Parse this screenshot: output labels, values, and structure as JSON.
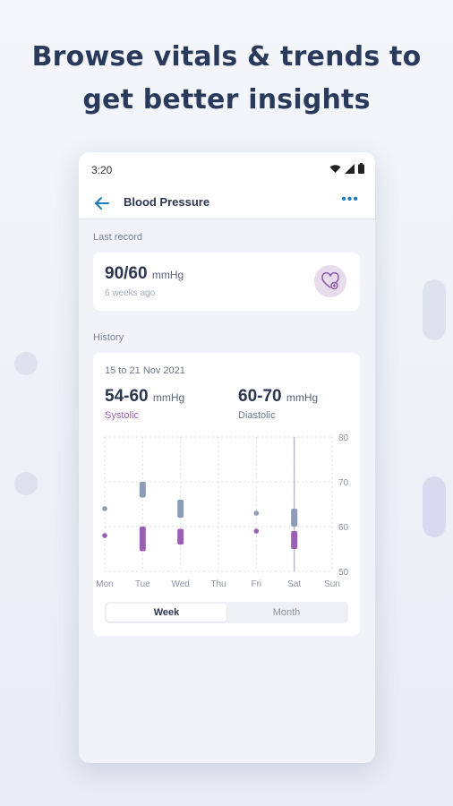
{
  "headline": {
    "line1": "Browse vitals & trends to",
    "line2": "get better insights"
  },
  "status_bar": {
    "time": "3:20",
    "icons": [
      "wifi-icon",
      "cell-signal-icon",
      "battery-icon"
    ]
  },
  "app_bar": {
    "title": "Blood Pressure",
    "back_icon": "arrow-left-icon",
    "menu_icon": "more-horizontal-icon",
    "menu_glyph": "•••"
  },
  "last_record": {
    "section_label": "Last record",
    "value": "90/60",
    "unit": "mmHg",
    "time_ago": "6 weeks ago",
    "action_icon": "heart-add-icon"
  },
  "history": {
    "section_label": "History",
    "date_range": "15 to 21 Nov 2021",
    "systolic": {
      "value": "54-60",
      "unit": "mmHg",
      "label": "Systolic"
    },
    "diastolic": {
      "value": "60-70",
      "unit": "mmHg",
      "label": "Diastolic"
    },
    "tabs": [
      {
        "label": "Week",
        "active": true
      },
      {
        "label": "Month",
        "active": false
      }
    ]
  },
  "colors": {
    "accent": "#1a7fc1",
    "title_text": "#2b3550",
    "systolic": "#9b5fb6",
    "diastolic": "#8d9db6",
    "heart_bg": "#e6dcec"
  },
  "chart_data": {
    "type": "range-bar",
    "categories": [
      "Mon",
      "Tue",
      "Wed",
      "Thu",
      "Fri",
      "Sat",
      "Sun"
    ],
    "y_ticks": [
      80,
      70,
      60,
      50
    ],
    "ylim": [
      50,
      80
    ],
    "grid": true,
    "series": [
      {
        "color": "#8d9db6",
        "ranges": [
          [
            64,
            64
          ],
          [
            66.5,
            70
          ],
          [
            62,
            66
          ],
          null,
          [
            63,
            63
          ],
          [
            60,
            64
          ],
          null
        ]
      },
      {
        "color": "#9b5fb6",
        "ranges": [
          [
            58,
            58
          ],
          [
            54.5,
            60
          ],
          [
            56,
            59.5
          ],
          null,
          [
            59,
            59
          ],
          [
            55,
            59
          ],
          null
        ]
      }
    ],
    "highlight_category": "Sat"
  }
}
